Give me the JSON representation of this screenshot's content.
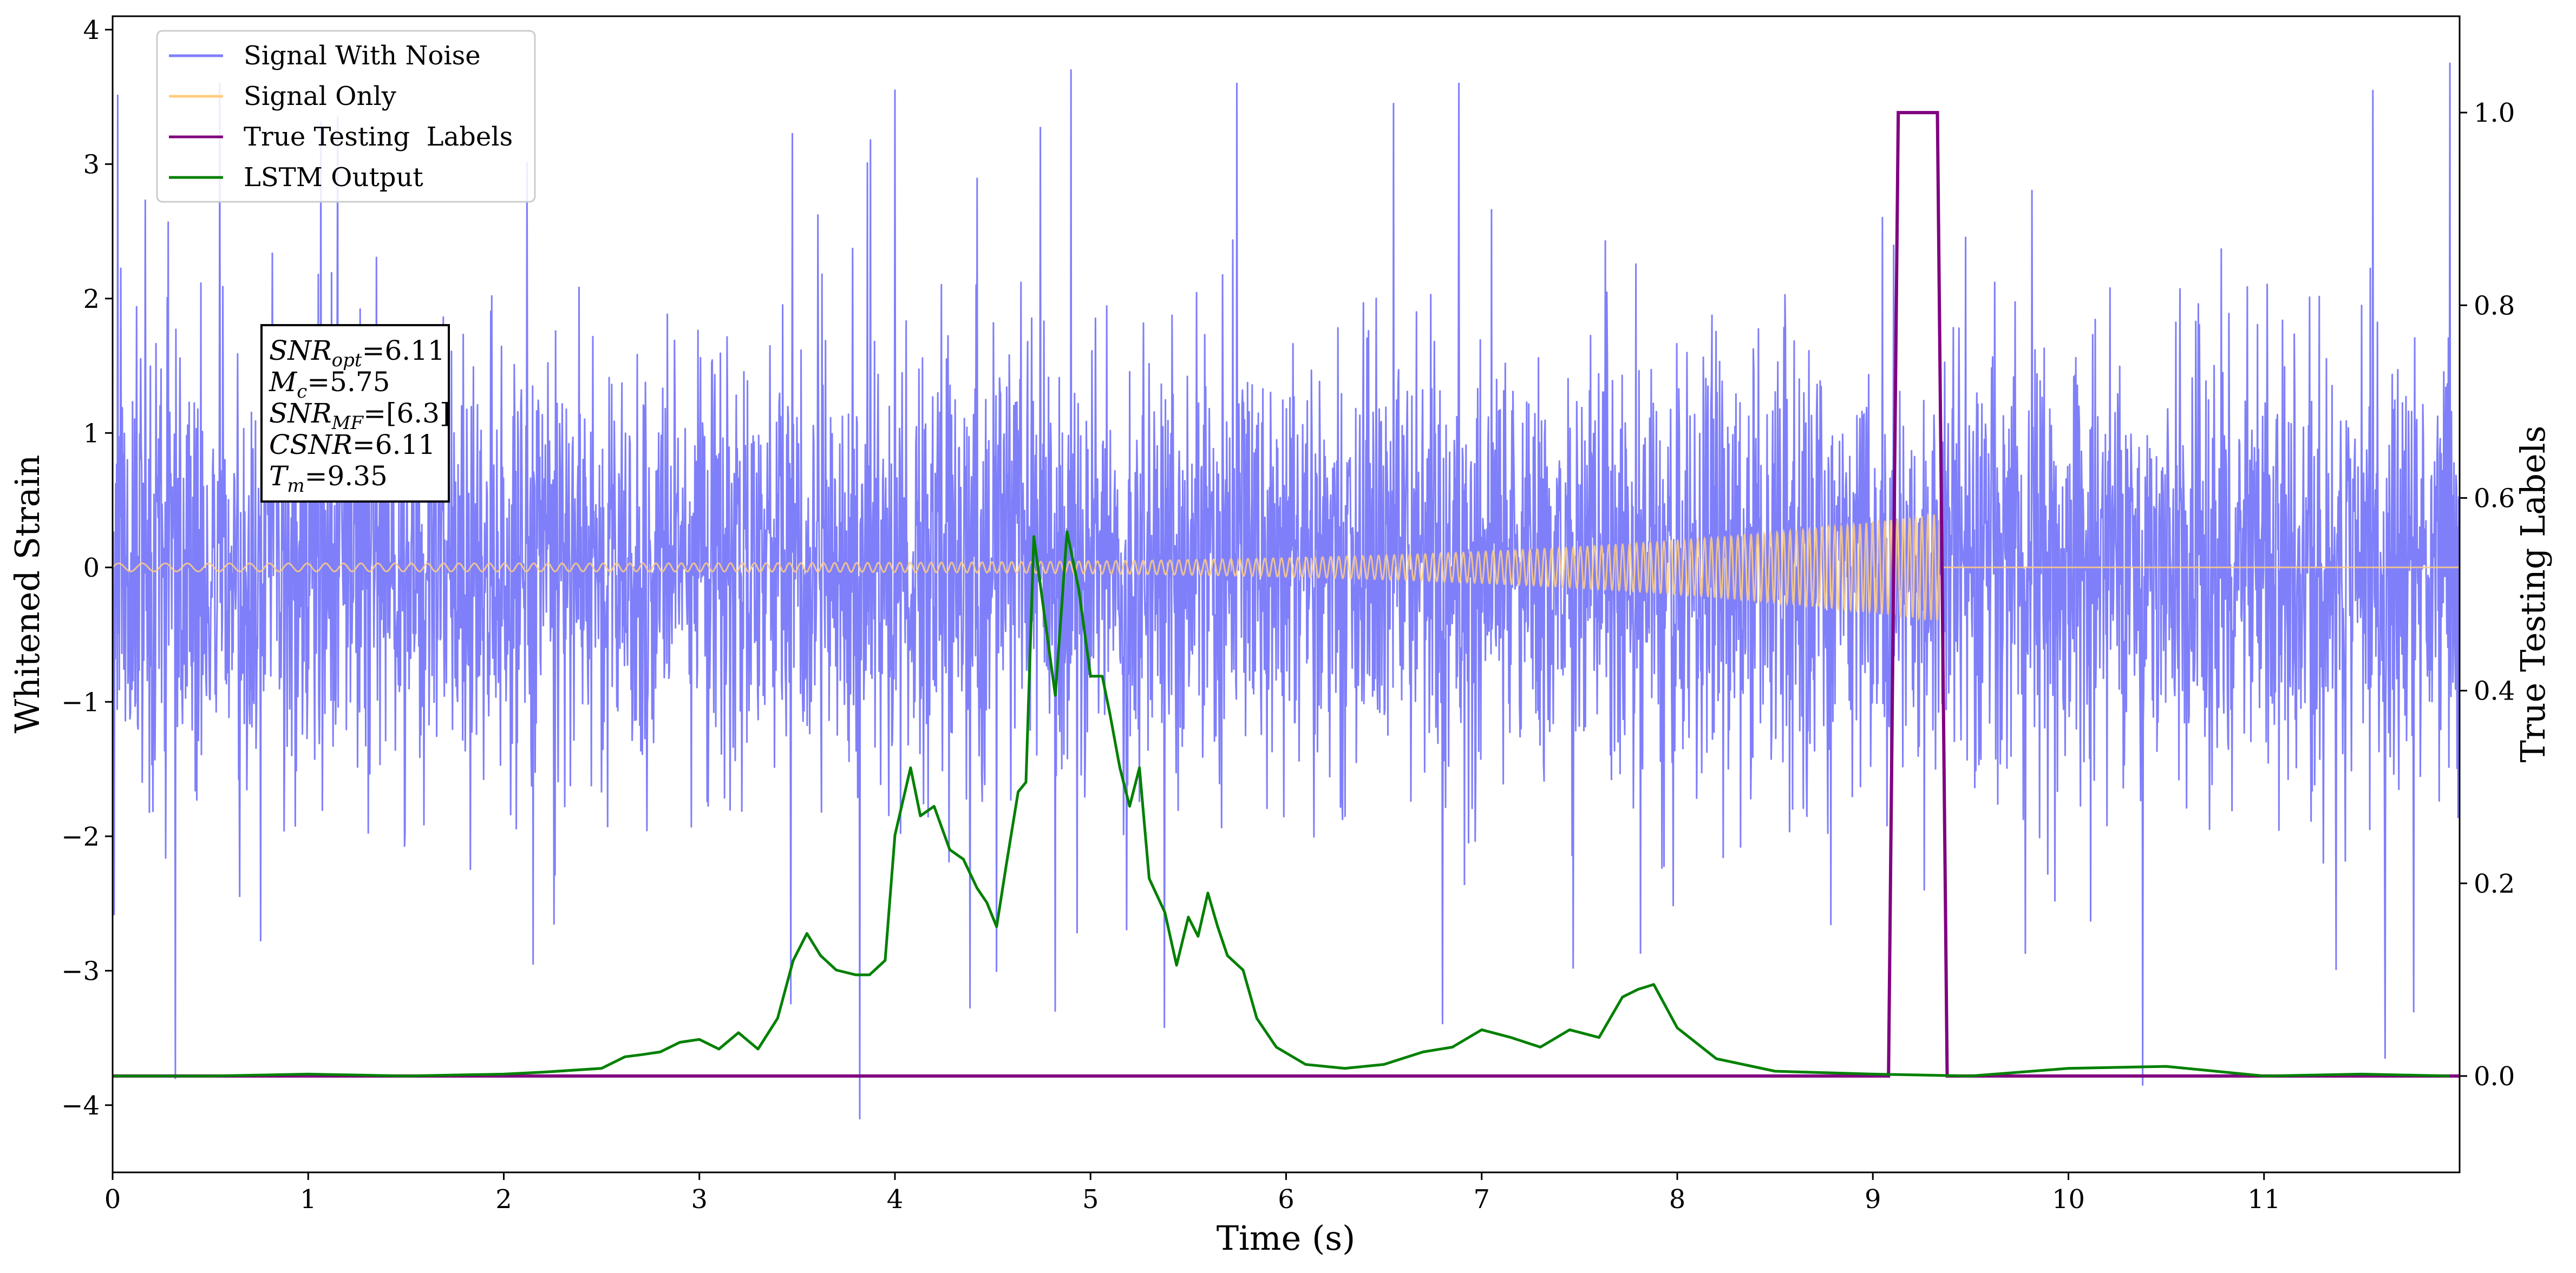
{
  "chart_data": {
    "type": "line",
    "xlabel": "Time (s)",
    "ylabel": "Whitened Strain",
    "y2label": "True Testing Labels",
    "xlim": [
      0,
      12
    ],
    "ylim": [
      -4.5,
      4.1
    ],
    "y2lim": [
      -0.1,
      1.1
    ],
    "xticks": [
      0,
      1,
      2,
      3,
      4,
      5,
      6,
      7,
      8,
      9,
      10,
      11
    ],
    "xtick_labels": [
      "0",
      "1",
      "2",
      "3",
      "4",
      "5",
      "6",
      "7",
      "8",
      "9",
      "10",
      "11"
    ],
    "yticks": [
      -4,
      -3,
      -2,
      -1,
      0,
      1,
      2,
      3,
      4
    ],
    "ytick_labels": [
      "−4",
      "−3",
      "−2",
      "−1",
      "0",
      "1",
      "2",
      "3",
      "4"
    ],
    "y2ticks": [
      0.0,
      0.2,
      0.4,
      0.6,
      0.8,
      1.0
    ],
    "y2tick_labels": [
      "0.0",
      "0.2",
      "0.4",
      "0.6",
      "0.8",
      "1.0"
    ],
    "grid": false,
    "legend_position": "top-left",
    "series": [
      {
        "name": "Signal With Noise",
        "color": "#7f7ffa",
        "axis": "left",
        "description_values": {
          "noise_band_typical": [
            -1.6,
            1.6
          ],
          "spike_max": 3.75,
          "spike_min": -4.1
        },
        "spikes": [
          {
            "x": 0.32,
            "y": -3.8
          },
          {
            "x": 1.15,
            "y": 3.35
          },
          {
            "x": 2.15,
            "y": -2.95
          },
          {
            "x": 3.82,
            "y": -4.1
          },
          {
            "x": 4.0,
            "y": 3.55
          },
          {
            "x": 4.9,
            "y": 3.7
          },
          {
            "x": 4.82,
            "y": -3.3
          },
          {
            "x": 6.55,
            "y": 3.45
          },
          {
            "x": 10.38,
            "y": -3.85
          },
          {
            "x": 11.62,
            "y": -3.65
          },
          {
            "x": 11.95,
            "y": 3.75
          }
        ]
      },
      {
        "name": "Signal Only",
        "color": "#ffcc80",
        "axis": "left",
        "chirp_end_time": 9.35,
        "amplitude_start": 0.03,
        "amplitude_peak": 0.4
      },
      {
        "name": "True Testing  Labels",
        "color": "#800080",
        "axis": "right",
        "x": [
          0,
          9.08,
          9.13,
          9.33,
          9.38,
          12
        ],
        "y": [
          0,
          0,
          1,
          1,
          0,
          0
        ]
      },
      {
        "name": "LSTM Output",
        "color": "#008000",
        "axis": "right",
        "x": [
          0,
          0.5,
          1.0,
          1.5,
          2.0,
          2.2,
          2.5,
          2.62,
          2.7,
          2.8,
          2.9,
          3.0,
          3.1,
          3.2,
          3.3,
          3.4,
          3.48,
          3.55,
          3.62,
          3.7,
          3.8,
          3.87,
          3.95,
          4.0,
          4.08,
          4.13,
          4.2,
          4.28,
          4.35,
          4.42,
          4.47,
          4.52,
          4.57,
          4.63,
          4.67,
          4.71,
          4.75,
          4.82,
          4.88,
          4.94,
          5.0,
          5.06,
          5.1,
          5.15,
          5.2,
          5.25,
          5.3,
          5.38,
          5.44,
          5.5,
          5.55,
          5.6,
          5.65,
          5.7,
          5.78,
          5.85,
          5.95,
          6.1,
          6.3,
          6.5,
          6.7,
          6.85,
          7.0,
          7.15,
          7.3,
          7.45,
          7.6,
          7.72,
          7.8,
          7.88,
          8.0,
          8.2,
          8.5,
          9.0,
          9.5,
          10.0,
          10.5,
          11.0,
          11.5,
          11.95
        ],
        "y": [
          0.0,
          0.0,
          0.002,
          0.0,
          0.002,
          0.004,
          0.008,
          0.02,
          0.022,
          0.025,
          0.035,
          0.038,
          0.028,
          0.045,
          0.028,
          0.06,
          0.12,
          0.148,
          0.125,
          0.11,
          0.105,
          0.105,
          0.12,
          0.25,
          0.32,
          0.27,
          0.28,
          0.235,
          0.225,
          0.195,
          0.18,
          0.155,
          0.22,
          0.295,
          0.305,
          0.56,
          0.5,
          0.395,
          0.565,
          0.505,
          0.415,
          0.415,
          0.375,
          0.32,
          0.28,
          0.32,
          0.205,
          0.17,
          0.115,
          0.165,
          0.145,
          0.19,
          0.155,
          0.125,
          0.11,
          0.06,
          0.03,
          0.012,
          0.008,
          0.012,
          0.025,
          0.03,
          0.048,
          0.04,
          0.03,
          0.048,
          0.04,
          0.082,
          0.09,
          0.095,
          0.05,
          0.018,
          0.005,
          0.002,
          0.0,
          0.008,
          0.01,
          0.0,
          0.002,
          0.0
        ]
      }
    ],
    "annotation": {
      "lines": [
        {
          "main": "SNR",
          "sub": "opt",
          "value": "=6.11"
        },
        {
          "main": "M",
          "sub": "c",
          "value": "=5.75"
        },
        {
          "main": "SNR",
          "sub": "MF",
          "value": "=[6.3]"
        },
        {
          "main": "CSNR",
          "sub": "",
          "value": "=6.11"
        },
        {
          "main": "T",
          "sub": "m",
          "value": "=9.35"
        }
      ]
    }
  }
}
